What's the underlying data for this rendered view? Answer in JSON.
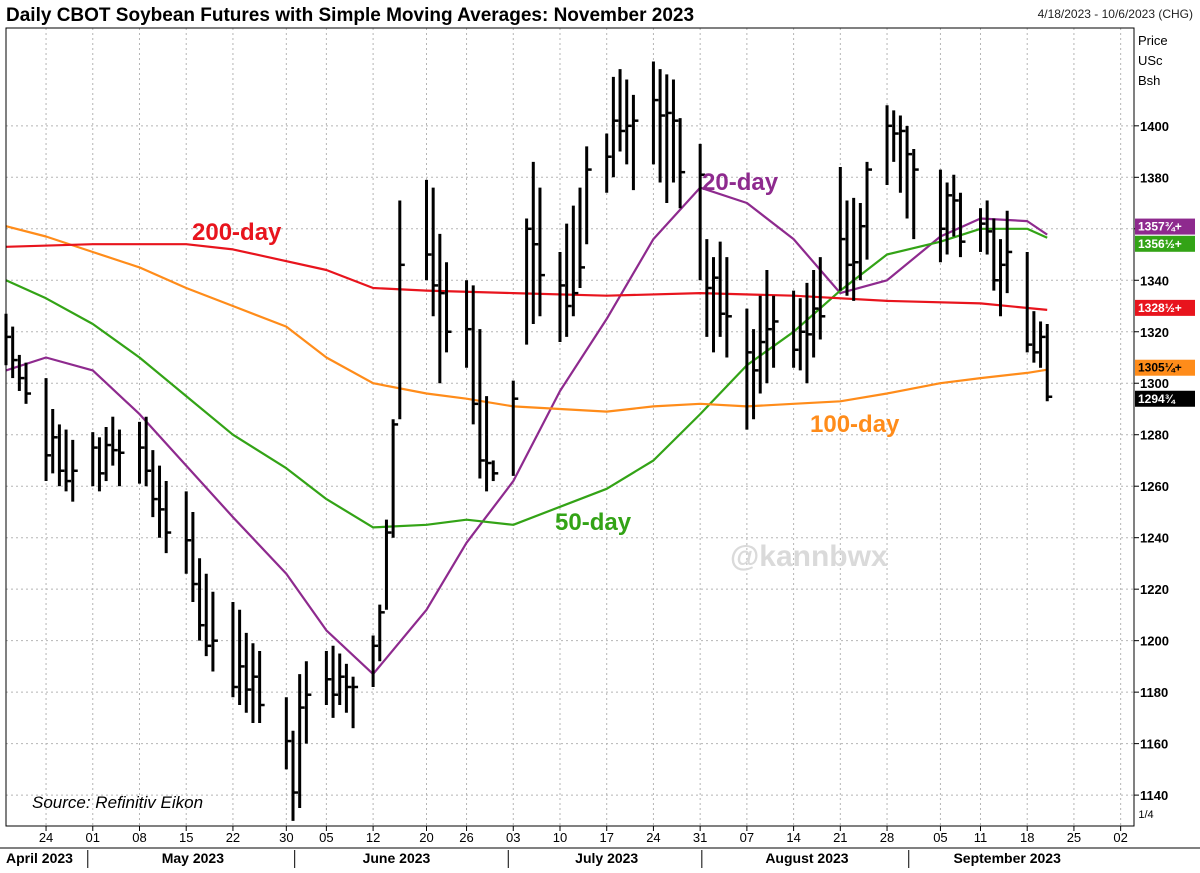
{
  "header": {
    "title": "Daily CBOT Soybean Futures with Simple Moving Averages: November 2023",
    "date_range": "4/18/2023 - 10/6/2023 (CHG)"
  },
  "axis_header": {
    "line1": "Price",
    "line2": "USc",
    "line3": "Bsh"
  },
  "source": "Source: Refinitiv Eikon",
  "watermark": "@kannbwx",
  "scale_label": "1/4",
  "colors": {
    "price": "#000000",
    "sma20": "#8e2a8e",
    "sma50": "#33a316",
    "sma100": "#ff8c1a",
    "sma200": "#e8141d",
    "grid": "#b5b5b5"
  },
  "chart_data": {
    "type": "line",
    "title": "Daily CBOT Soybean Futures with Simple Moving Averages: November 2023",
    "ylabel": "Price USc Bsh",
    "ylim": [
      1128,
      1438
    ],
    "xlim": [
      "2023-04-18",
      "2023-10-04"
    ],
    "y_ticks": [
      1140,
      1160,
      1180,
      1200,
      1220,
      1240,
      1260,
      1280,
      1300,
      1320,
      1340,
      1360,
      1380,
      1400
    ],
    "x_ticks": [
      {
        "date": "2023-04-24",
        "label": "24"
      },
      {
        "date": "2023-05-01",
        "label": "01"
      },
      {
        "date": "2023-05-08",
        "label": "08"
      },
      {
        "date": "2023-05-15",
        "label": "15"
      },
      {
        "date": "2023-05-22",
        "label": "22"
      },
      {
        "date": "2023-05-30",
        "label": "30"
      },
      {
        "date": "2023-06-05",
        "label": "05"
      },
      {
        "date": "2023-06-12",
        "label": "12"
      },
      {
        "date": "2023-06-20",
        "label": "20"
      },
      {
        "date": "2023-06-26",
        "label": "26"
      },
      {
        "date": "2023-07-03",
        "label": "03"
      },
      {
        "date": "2023-07-10",
        "label": "10"
      },
      {
        "date": "2023-07-17",
        "label": "17"
      },
      {
        "date": "2023-07-24",
        "label": "24"
      },
      {
        "date": "2023-07-31",
        "label": "31"
      },
      {
        "date": "2023-08-07",
        "label": "07"
      },
      {
        "date": "2023-08-14",
        "label": "14"
      },
      {
        "date": "2023-08-21",
        "label": "21"
      },
      {
        "date": "2023-08-28",
        "label": "28"
      },
      {
        "date": "2023-09-05",
        "label": "05"
      },
      {
        "date": "2023-09-11",
        "label": "11"
      },
      {
        "date": "2023-09-18",
        "label": "18"
      },
      {
        "date": "2023-09-25",
        "label": "25"
      },
      {
        "date": "2023-10-02",
        "label": "02"
      }
    ],
    "months": [
      {
        "label": "April 2023",
        "from": "2023-04-18",
        "to": "2023-04-28"
      },
      {
        "label": "May 2023",
        "from": "2023-05-01",
        "to": "2023-05-31"
      },
      {
        "label": "June 2023",
        "from": "2023-06-01",
        "to": "2023-06-30"
      },
      {
        "label": "July 2023",
        "from": "2023-07-03",
        "to": "2023-07-31"
      },
      {
        "label": "August 2023",
        "from": "2023-08-01",
        "to": "2023-08-31"
      },
      {
        "label": "September 2023",
        "from": "2023-09-01",
        "to": "2023-09-29"
      }
    ],
    "series": [
      {
        "name": "Price",
        "style": "ohlc",
        "dates": [
          "2023-04-18",
          "2023-04-19",
          "2023-04-20",
          "2023-04-21",
          "2023-04-24",
          "2023-04-25",
          "2023-04-26",
          "2023-04-27",
          "2023-04-28",
          "2023-05-01",
          "2023-05-02",
          "2023-05-03",
          "2023-05-04",
          "2023-05-05",
          "2023-05-08",
          "2023-05-09",
          "2023-05-10",
          "2023-05-11",
          "2023-05-12",
          "2023-05-15",
          "2023-05-16",
          "2023-05-17",
          "2023-05-18",
          "2023-05-19",
          "2023-05-22",
          "2023-05-23",
          "2023-05-24",
          "2023-05-25",
          "2023-05-26",
          "2023-05-30",
          "2023-05-31",
          "2023-06-01",
          "2023-06-02",
          "2023-06-05",
          "2023-06-06",
          "2023-06-07",
          "2023-06-08",
          "2023-06-09",
          "2023-06-12",
          "2023-06-13",
          "2023-06-14",
          "2023-06-15",
          "2023-06-16",
          "2023-06-20",
          "2023-06-21",
          "2023-06-22",
          "2023-06-23",
          "2023-06-26",
          "2023-06-27",
          "2023-06-28",
          "2023-06-29",
          "2023-06-30",
          "2023-07-03",
          "2023-07-05",
          "2023-07-06",
          "2023-07-07",
          "2023-07-10",
          "2023-07-11",
          "2023-07-12",
          "2023-07-13",
          "2023-07-14",
          "2023-07-17",
          "2023-07-18",
          "2023-07-19",
          "2023-07-20",
          "2023-07-21",
          "2023-07-24",
          "2023-07-25",
          "2023-07-26",
          "2023-07-27",
          "2023-07-28",
          "2023-07-31",
          "2023-08-01",
          "2023-08-02",
          "2023-08-03",
          "2023-08-04",
          "2023-08-07",
          "2023-08-08",
          "2023-08-09",
          "2023-08-10",
          "2023-08-11",
          "2023-08-14",
          "2023-08-15",
          "2023-08-16",
          "2023-08-17",
          "2023-08-18",
          "2023-08-21",
          "2023-08-22",
          "2023-08-23",
          "2023-08-24",
          "2023-08-25",
          "2023-08-28",
          "2023-08-29",
          "2023-08-30",
          "2023-08-31",
          "2023-09-01",
          "2023-09-05",
          "2023-09-06",
          "2023-09-07",
          "2023-09-08",
          "2023-09-11",
          "2023-09-12",
          "2023-09-13",
          "2023-09-14",
          "2023-09-15",
          "2023-09-18",
          "2023-09-19",
          "2023-09-20",
          "2023-09-21"
        ],
        "high": [
          1327,
          1322,
          1311,
          1308,
          1302,
          1290,
          1284,
          1282,
          1278,
          1281,
          1279,
          1283,
          1287,
          1282,
          1285,
          1287,
          1274,
          1268,
          1262,
          1258,
          1250,
          1232,
          1226,
          1219,
          1215,
          1212,
          1203,
          1199,
          1196,
          1178,
          1165,
          1187,
          1192,
          1196,
          1198,
          1195,
          1191,
          1186,
          1202,
          1214,
          1247,
          1286,
          1371,
          1379,
          1376,
          1358,
          1347,
          1340,
          1338,
          1321,
          1295,
          1270,
          1301,
          1364,
          1386,
          1376,
          1351,
          1362,
          1369,
          1376,
          1392,
          1397,
          1419,
          1422,
          1418,
          1412,
          1425,
          1422,
          1420,
          1418,
          1403,
          1393,
          1356,
          1349,
          1355,
          1349,
          1329,
          1321,
          1334,
          1344,
          1334,
          1336,
          1333,
          1339,
          1344,
          1349,
          1384,
          1371,
          1372,
          1370,
          1386,
          1408,
          1406,
          1404,
          1400,
          1391,
          1383,
          1378,
          1381,
          1374,
          1368,
          1371,
          1364,
          1356,
          1367,
          1351,
          1328,
          1324,
          1323
        ],
        "low": [
          1307,
          1302,
          1297,
          1292,
          1262,
          1265,
          1260,
          1258,
          1254,
          1260,
          1258,
          1262,
          1268,
          1260,
          1261,
          1260,
          1248,
          1240,
          1234,
          1226,
          1215,
          1200,
          1194,
          1188,
          1178,
          1175,
          1172,
          1168,
          1168,
          1150,
          1130,
          1135,
          1160,
          1175,
          1170,
          1175,
          1172,
          1166,
          1182,
          1192,
          1212,
          1240,
          1286,
          1340,
          1326,
          1300,
          1312,
          1306,
          1284,
          1263,
          1258,
          1262,
          1264,
          1315,
          1323,
          1326,
          1316,
          1318,
          1326,
          1337,
          1354,
          1374,
          1380,
          1390,
          1385,
          1375,
          1385,
          1378,
          1370,
          1378,
          1368,
          1340,
          1318,
          1312,
          1318,
          1310,
          1282,
          1286,
          1296,
          1300,
          1306,
          1306,
          1305,
          1300,
          1310,
          1317,
          1336,
          1334,
          1332,
          1340,
          1348,
          1377,
          1386,
          1374,
          1364,
          1356,
          1347,
          1350,
          1357,
          1349,
          1351,
          1350,
          1336,
          1326,
          1335,
          1312,
          1308,
          1306,
          1293
        ],
        "close": [
          1318,
          1309,
          1302,
          1296,
          1272,
          1279,
          1266,
          1262,
          1266,
          1275,
          1265,
          1276,
          1274,
          1273,
          1275,
          1266,
          1255,
          1251,
          1242,
          1239,
          1222,
          1206,
          1198,
          1200,
          1182,
          1190,
          1181,
          1186,
          1175,
          1161,
          1141,
          1174,
          1179,
          1185,
          1179,
          1186,
          1182,
          1182,
          1198,
          1211,
          1242,
          1284,
          1346,
          1350,
          1338,
          1335,
          1320,
          1321,
          1292,
          1270,
          1269,
          1265,
          1294,
          1360,
          1354,
          1342,
          1338,
          1330,
          1335,
          1345,
          1383,
          1388,
          1402,
          1398,
          1400,
          1402,
          1410,
          1404,
          1405,
          1402,
          1382,
          1381,
          1337,
          1341,
          1327,
          1326,
          1312,
          1305,
          1316,
          1321,
          1324,
          1313,
          1320,
          1319,
          1329,
          1326,
          1356,
          1346,
          1347,
          1361,
          1383,
          1400,
          1397,
          1398,
          1389,
          1383,
          1360,
          1373,
          1371,
          1355,
          1362,
          1359,
          1340,
          1346,
          1351,
          1315,
          1312,
          1318,
          1294.75
        ]
      },
      {
        "name": "20-day",
        "points": [
          [
            "2023-04-18",
            1305
          ],
          [
            "2023-04-24",
            1310
          ],
          [
            "2023-05-01",
            1305
          ],
          [
            "2023-05-08",
            1288
          ],
          [
            "2023-05-15",
            1268
          ],
          [
            "2023-05-22",
            1248
          ],
          [
            "2023-05-30",
            1226
          ],
          [
            "2023-06-05",
            1204
          ],
          [
            "2023-06-12",
            1187
          ],
          [
            "2023-06-20",
            1212
          ],
          [
            "2023-06-26",
            1238
          ],
          [
            "2023-07-03",
            1262
          ],
          [
            "2023-07-10",
            1297
          ],
          [
            "2023-07-17",
            1325
          ],
          [
            "2023-07-24",
            1356
          ],
          [
            "2023-07-31",
            1376
          ],
          [
            "2023-08-07",
            1370
          ],
          [
            "2023-08-14",
            1356
          ],
          [
            "2023-08-21",
            1335
          ],
          [
            "2023-08-28",
            1340
          ],
          [
            "2023-09-05",
            1357
          ],
          [
            "2023-09-11",
            1364
          ],
          [
            "2023-09-18",
            1363
          ],
          [
            "2023-09-21",
            1357.75
          ]
        ]
      },
      {
        "name": "50-day",
        "points": [
          [
            "2023-04-18",
            1340
          ],
          [
            "2023-04-24",
            1333
          ],
          [
            "2023-05-01",
            1323
          ],
          [
            "2023-05-08",
            1310
          ],
          [
            "2023-05-15",
            1295
          ],
          [
            "2023-05-22",
            1280
          ],
          [
            "2023-05-30",
            1267
          ],
          [
            "2023-06-05",
            1255
          ],
          [
            "2023-06-12",
            1244
          ],
          [
            "2023-06-20",
            1245
          ],
          [
            "2023-06-26",
            1247
          ],
          [
            "2023-07-03",
            1245
          ],
          [
            "2023-07-10",
            1252
          ],
          [
            "2023-07-17",
            1259
          ],
          [
            "2023-07-24",
            1270
          ],
          [
            "2023-07-31",
            1288
          ],
          [
            "2023-08-07",
            1307
          ],
          [
            "2023-08-14",
            1320
          ],
          [
            "2023-08-21",
            1336
          ],
          [
            "2023-08-28",
            1350
          ],
          [
            "2023-09-05",
            1355
          ],
          [
            "2023-09-11",
            1360
          ],
          [
            "2023-09-18",
            1360
          ],
          [
            "2023-09-21",
            1356.5
          ]
        ]
      },
      {
        "name": "100-day",
        "points": [
          [
            "2023-04-18",
            1361
          ],
          [
            "2023-04-24",
            1357
          ],
          [
            "2023-05-01",
            1351
          ],
          [
            "2023-05-08",
            1345
          ],
          [
            "2023-05-15",
            1337
          ],
          [
            "2023-05-22",
            1330
          ],
          [
            "2023-05-30",
            1322
          ],
          [
            "2023-06-05",
            1310
          ],
          [
            "2023-06-12",
            1300
          ],
          [
            "2023-06-20",
            1296
          ],
          [
            "2023-06-26",
            1294
          ],
          [
            "2023-07-03",
            1291
          ],
          [
            "2023-07-10",
            1290
          ],
          [
            "2023-07-17",
            1289
          ],
          [
            "2023-07-24",
            1291
          ],
          [
            "2023-07-31",
            1292
          ],
          [
            "2023-08-07",
            1291
          ],
          [
            "2023-08-14",
            1292
          ],
          [
            "2023-08-21",
            1293
          ],
          [
            "2023-08-28",
            1296
          ],
          [
            "2023-09-05",
            1300
          ],
          [
            "2023-09-11",
            1302
          ],
          [
            "2023-09-18",
            1304
          ],
          [
            "2023-09-21",
            1305.25
          ]
        ]
      },
      {
        "name": "200-day",
        "points": [
          [
            "2023-04-18",
            1353
          ],
          [
            "2023-05-01",
            1354
          ],
          [
            "2023-05-15",
            1354
          ],
          [
            "2023-05-22",
            1352
          ],
          [
            "2023-06-05",
            1344
          ],
          [
            "2023-06-12",
            1337
          ],
          [
            "2023-06-20",
            1336
          ],
          [
            "2023-07-03",
            1335
          ],
          [
            "2023-07-17",
            1334
          ],
          [
            "2023-07-31",
            1335
          ],
          [
            "2023-08-14",
            1334
          ],
          [
            "2023-08-28",
            1332
          ],
          [
            "2023-09-11",
            1331
          ],
          [
            "2023-09-21",
            1328.5
          ]
        ]
      }
    ],
    "series_labels": [
      {
        "series": "20-day",
        "text": "20-day"
      },
      {
        "series": "50-day",
        "text": "50-day"
      },
      {
        "series": "100-day",
        "text": "100-day"
      },
      {
        "series": "200-day",
        "text": "200-day"
      }
    ],
    "last_value_tags": [
      {
        "series": "20-day",
        "label": "1357¾+",
        "value": 1357.75
      },
      {
        "series": "50-day",
        "label": "1356½+",
        "value": 1356.5
      },
      {
        "series": "200-day",
        "label": "1328½+",
        "value": 1328.5
      },
      {
        "series": "100-day",
        "label": "1305¼+",
        "value": 1305.25
      },
      {
        "series": "Price",
        "label": "1294¾",
        "value": 1294.75
      }
    ]
  }
}
